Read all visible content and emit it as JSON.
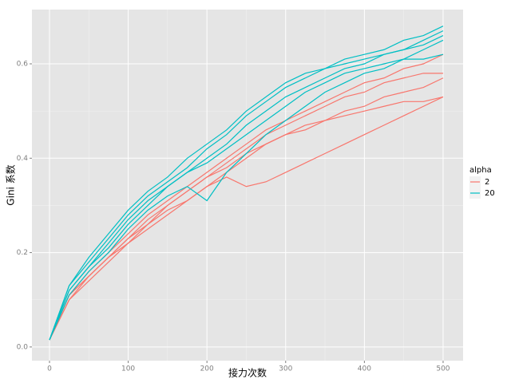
{
  "chart_data": {
    "type": "line",
    "x_label": "接力次数",
    "y_label": "Gini 系数",
    "legend_title": "alpha",
    "x": [
      0,
      25,
      50,
      75,
      100,
      125,
      150,
      175,
      200,
      225,
      250,
      275,
      300,
      325,
      350,
      375,
      400,
      425,
      450,
      475,
      500
    ],
    "xlim": [
      -22.3,
      525.4
    ],
    "xticks": [
      0,
      100,
      200,
      300,
      400,
      500
    ],
    "ylim": [
      -0.029,
      0.715
    ],
    "yticks": [
      {
        "value": 0,
        "label": "0.0"
      },
      {
        "value": 0.2,
        "label": "0.2"
      },
      {
        "value": 0.4,
        "label": "0.4"
      },
      {
        "value": 0.6,
        "label": "0.6"
      }
    ],
    "grid": true,
    "legend": "right",
    "series": [
      {
        "name": "2",
        "color": "#f8766d",
        "lines": [
          [
            0.015,
            0.11,
            0.15,
            0.19,
            0.23,
            0.27,
            0.3,
            0.33,
            0.36,
            0.39,
            0.42,
            0.45,
            0.47,
            0.49,
            0.51,
            0.53,
            0.54,
            0.56,
            0.57,
            0.58,
            0.58
          ],
          [
            0.015,
            0.1,
            0.14,
            0.18,
            0.22,
            0.26,
            0.29,
            0.31,
            0.34,
            0.36,
            0.34,
            0.35,
            0.37,
            0.39,
            0.41,
            0.43,
            0.45,
            0.47,
            0.49,
            0.51,
            0.53
          ],
          [
            0.015,
            0.11,
            0.16,
            0.2,
            0.24,
            0.28,
            0.31,
            0.34,
            0.37,
            0.4,
            0.43,
            0.46,
            0.48,
            0.5,
            0.52,
            0.54,
            0.56,
            0.57,
            0.59,
            0.6,
            0.62
          ],
          [
            0.015,
            0.1,
            0.15,
            0.19,
            0.23,
            0.26,
            0.3,
            0.33,
            0.36,
            0.38,
            0.41,
            0.43,
            0.45,
            0.47,
            0.48,
            0.5,
            0.51,
            0.53,
            0.54,
            0.55,
            0.57
          ],
          [
            0.015,
            0.11,
            0.15,
            0.19,
            0.22,
            0.25,
            0.28,
            0.31,
            0.34,
            0.37,
            0.4,
            0.43,
            0.45,
            0.46,
            0.48,
            0.49,
            0.5,
            0.51,
            0.52,
            0.52,
            0.53
          ]
        ]
      },
      {
        "name": "20",
        "color": "#00bfc4",
        "lines": [
          [
            0.015,
            0.13,
            0.18,
            0.23,
            0.28,
            0.32,
            0.35,
            0.38,
            0.42,
            0.45,
            0.49,
            0.52,
            0.55,
            0.57,
            0.59,
            0.61,
            0.62,
            0.63,
            0.65,
            0.66,
            0.68
          ],
          [
            0.015,
            0.12,
            0.17,
            0.21,
            0.26,
            0.3,
            0.34,
            0.37,
            0.4,
            0.43,
            0.47,
            0.5,
            0.53,
            0.55,
            0.57,
            0.59,
            0.6,
            0.62,
            0.63,
            0.64,
            0.66
          ],
          [
            0.015,
            0.11,
            0.16,
            0.2,
            0.25,
            0.29,
            0.32,
            0.34,
            0.31,
            0.37,
            0.41,
            0.45,
            0.48,
            0.51,
            0.54,
            0.56,
            0.58,
            0.59,
            0.61,
            0.63,
            0.65
          ],
          [
            0.015,
            0.12,
            0.17,
            0.22,
            0.27,
            0.31,
            0.34,
            0.37,
            0.39,
            0.42,
            0.45,
            0.48,
            0.51,
            0.54,
            0.56,
            0.58,
            0.59,
            0.6,
            0.61,
            0.61,
            0.62
          ],
          [
            0.015,
            0.13,
            0.19,
            0.24,
            0.29,
            0.33,
            0.36,
            0.4,
            0.43,
            0.46,
            0.5,
            0.53,
            0.56,
            0.58,
            0.59,
            0.6,
            0.61,
            0.62,
            0.63,
            0.65,
            0.67
          ]
        ]
      }
    ]
  }
}
